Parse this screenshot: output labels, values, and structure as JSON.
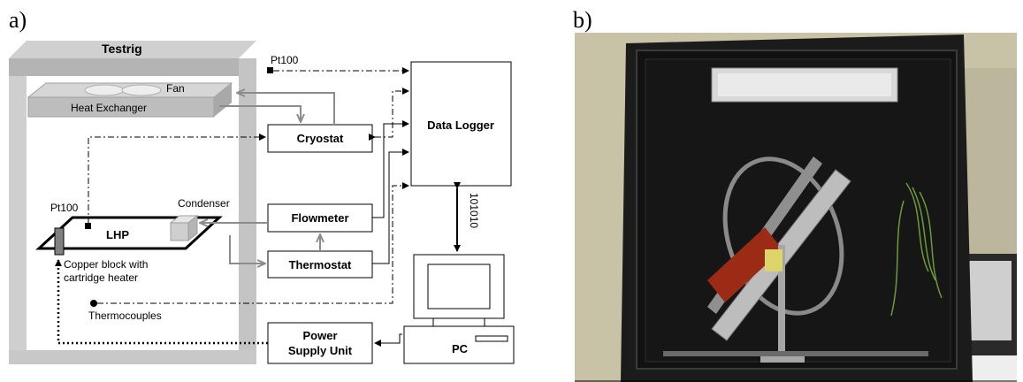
{
  "panels": {
    "a_label": "a)",
    "b_label": "b)"
  },
  "diagram": {
    "testrig_title": "Testrig",
    "fan": "Fan",
    "heat_exchanger": "Heat Exchanger",
    "pt100_top": "Pt100",
    "pt100_left": "Pt100",
    "condenser": "Condenser",
    "lhp": "LHP",
    "copper_block_line1": "Copper block with",
    "copper_block_line2": "cartridge heater",
    "thermocouples": "Thermocouples",
    "cryostat": "Cryostat",
    "flowmeter": "Flowmeter",
    "thermostat": "Thermostat",
    "power_supply_line1": "Power",
    "power_supply_line2": "Supply Unit",
    "data_logger": "Data Logger",
    "binary_link": "101010",
    "pc": "PC"
  },
  "colors": {
    "frame_gray": "#c4c4c4",
    "frame_dark": "#9e9e9e",
    "flow_gray": "#8c8c8c",
    "photo_black": "#0d0d0d",
    "photo_wall": "#c8c2a6"
  }
}
